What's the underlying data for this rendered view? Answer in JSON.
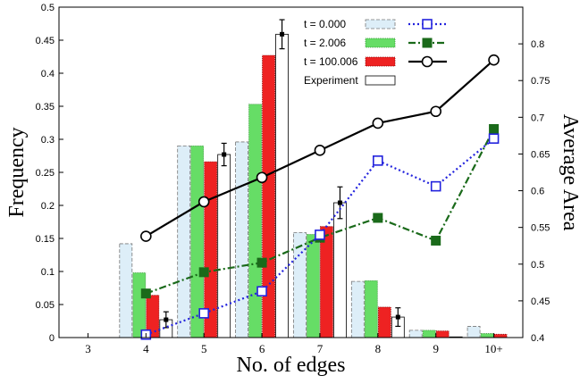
{
  "chart_data": {
    "type": "bar",
    "categories": [
      "3",
      "4",
      "5",
      "6",
      "7",
      "8",
      "9",
      "10+"
    ],
    "xlabel": "No. of edges",
    "ylabel": "Frequency",
    "y2label": "Average Area",
    "ylim": [
      0,
      0.5
    ],
    "y2lim": [
      0.4,
      0.85
    ],
    "yticks": [
      "0",
      "0.05",
      "0.1",
      "0.15",
      "0.2",
      "0.25",
      "0.3",
      "0.35",
      "0.4",
      "0.45",
      "0.5"
    ],
    "y2ticks": [
      "0.4",
      "0.45",
      "0.5",
      "0.55",
      "0.6",
      "0.65",
      "0.7",
      "0.75",
      "0.8"
    ],
    "grid": false,
    "legend_position": "top-right",
    "bar_series": [
      {
        "name": "t =     0.000",
        "color": "#ddeef8",
        "edge": "#777777",
        "values": [
          0,
          0.142,
          0.29,
          0.296,
          0.159,
          0.085,
          0.011,
          0.017
        ]
      },
      {
        "name": "t =     2.006",
        "color": "#66dd66",
        "edge": "#2f8f2f",
        "values": [
          0,
          0.098,
          0.29,
          0.353,
          0.156,
          0.086,
          0.011,
          0.006
        ]
      },
      {
        "name": "t = 100.006",
        "color": "#ee2222",
        "edge": "#880000",
        "values": [
          0,
          0.064,
          0.266,
          0.427,
          0.168,
          0.046,
          0.01,
          0.005
        ]
      },
      {
        "name": "Experiment",
        "color": "#ffffff",
        "edge": "#000000",
        "values": [
          0,
          0.027,
          0.277,
          0.459,
          0.204,
          0.031,
          0.001,
          0
        ],
        "errors": [
          0,
          0.012,
          0.017,
          0.022,
          0.024,
          0.014,
          0,
          0
        ]
      }
    ],
    "line_series": [
      {
        "name": "t = 0.000 avg",
        "color": "#2222dd",
        "marker": "open-square",
        "dash": "dotted",
        "values": [
          null,
          0.404,
          0.433,
          0.463,
          0.54,
          0.641,
          0.606,
          0.671
        ]
      },
      {
        "name": "t = 2.006 avg",
        "color": "#1a6a1a",
        "marker": "filled-square",
        "dash": "dashdot",
        "values": [
          null,
          0.46,
          0.489,
          0.502,
          0.536,
          0.563,
          0.532,
          0.684
        ]
      },
      {
        "name": "t = 100.006 avg",
        "color": "#000000",
        "marker": "open-circle",
        "dash": "solid",
        "values": [
          null,
          0.538,
          0.585,
          0.618,
          0.655,
          0.692,
          0.708,
          0.778
        ]
      }
    ]
  }
}
